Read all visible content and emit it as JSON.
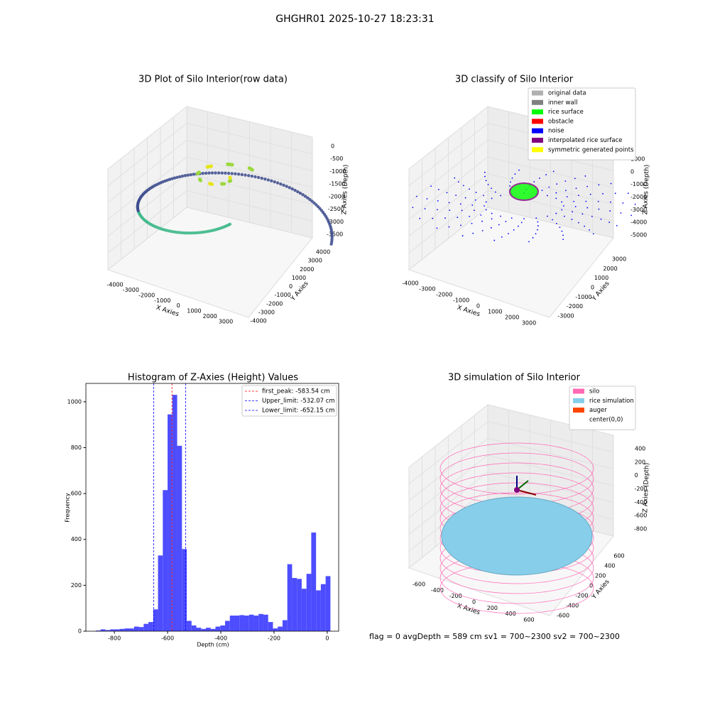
{
  "figure_title": "GHGHR01 2025-10-27 18:23:31",
  "status": "flag = 0     avgDepth = 589 cm  sv1 = 700~2300  sv2 = 700~2300",
  "chart_data": {
    "type": "histogram",
    "title": "Histogram of Z-Axies (Height) Values",
    "x_label": "Depth (cm)",
    "y_label": "Frequency",
    "color": "#4d4dff",
    "bins": [
      -870,
      -852,
      -834,
      -816,
      -798,
      -780,
      -762,
      -744,
      -726,
      -708,
      -690,
      -672,
      -654,
      -636,
      -618,
      -600,
      -582,
      -564,
      -546,
      -528,
      -510,
      -492,
      -474,
      -456,
      -438,
      -420,
      -402,
      -384,
      -366,
      -348,
      -330,
      -312,
      -294,
      -276,
      -258,
      -240,
      -222,
      -204,
      -186,
      -168,
      -150,
      -132,
      -114,
      -96,
      -78,
      -60,
      -42,
      -24,
      -6,
      12
    ],
    "values": [
      3,
      8,
      5,
      8,
      8,
      10,
      12,
      12,
      20,
      18,
      32,
      40,
      95,
      330,
      615,
      945,
      1030,
      808,
      358,
      45,
      25,
      15,
      10,
      15,
      10,
      20,
      25,
      45,
      68,
      68,
      70,
      68,
      72,
      68,
      75,
      72,
      40,
      12,
      20,
      48,
      292,
      232,
      228,
      185,
      250,
      430,
      178,
      205,
      240
    ],
    "xlim": [
      -907,
      43
    ],
    "xticks": [
      -800,
      -600,
      -400,
      -200,
      0
    ],
    "ylim": [
      0,
      1080
    ],
    "yticks": [
      0,
      200,
      400,
      600,
      800,
      1000
    ],
    "lines": [
      {
        "label": "first_peak: -583.54 cm",
        "value": -583.54,
        "color": "#ff0000"
      },
      {
        "label": "Upper_limit: -532.07 cm",
        "value": -532.07,
        "color": "#0000ff"
      },
      {
        "label": "Lower_limit: -652.15 cm",
        "value": -652.15,
        "color": "#0000ff"
      }
    ],
    "legend": "upper right"
  },
  "plots3d": [
    {
      "title": "3D Plot of Silo Interior(row data)",
      "x_label": "X Axies",
      "y_label": "Y Axies",
      "z_label": "Z Axies (Depth)",
      "xticks": [
        -4000,
        -3000,
        -2000,
        -1000,
        0,
        1000,
        2000,
        3000
      ],
      "yticks": [
        4000,
        3000,
        2000,
        1000,
        0,
        -1000,
        -2000,
        -3000,
        -4000
      ],
      "zticks": [
        0,
        -500,
        -1000,
        -1500,
        -2000,
        -2500,
        -3000,
        -3500
      ]
    },
    {
      "title": "3D classify of Silo Interior",
      "x_label": "X Axies",
      "y_label": "Y Axies",
      "z_label": "Z Axies (Depth)",
      "xticks": [
        -4000,
        -3000,
        -2000,
        -1000,
        0,
        1000,
        2000,
        3000
      ],
      "yticks": [
        3000,
        2000,
        1000,
        0,
        -1000,
        -2000,
        -3000
      ],
      "zticks": [
        1000,
        0,
        -1000,
        -2000,
        -3000,
        -4000,
        -5000
      ],
      "legend": [
        {
          "name": "original data",
          "color": "#b0b0b0"
        },
        {
          "name": "inner wall",
          "color": "#808080"
        },
        {
          "name": "rice surface",
          "color": "#00ff00"
        },
        {
          "name": "obstacle",
          "color": "#ff0000"
        },
        {
          "name": "noise",
          "color": "#0000ff"
        },
        {
          "name": "interpolated rice surface",
          "color": "#800080"
        },
        {
          "name": "symmetric generated points",
          "color": "#ffff00"
        }
      ]
    },
    {
      "title": "3D simulation of Silo Interior",
      "x_label": "X Axies",
      "y_label": "Y Axies",
      "z_label": "Z Axies (Depth)",
      "xticks": [
        -600,
        -400,
        -200,
        0,
        200,
        400,
        600
      ],
      "yticks": [
        600,
        400,
        200,
        0,
        -200,
        -400,
        -600
      ],
      "zticks": [
        400,
        200,
        0,
        -200,
        -400,
        -600,
        -800
      ],
      "legend": [
        {
          "name": "silo",
          "color": "#ff69b4"
        },
        {
          "name": "rice simulation",
          "color": "#87ceeb"
        },
        {
          "name": "auger",
          "color": "#ff4500"
        },
        {
          "name": "center(0,0)",
          "color": "#ffffff"
        }
      ]
    }
  ]
}
